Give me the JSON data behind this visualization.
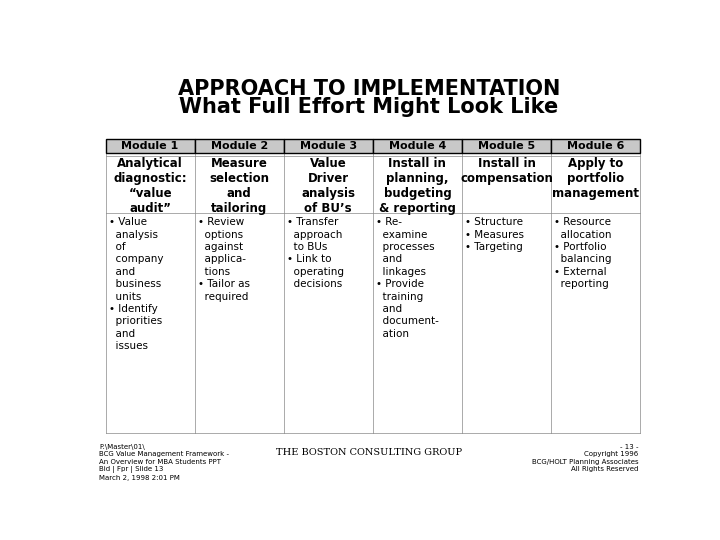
{
  "title_line1": "APPROACH TO IMPLEMENTATION",
  "title_line2": "What Full Effort Might Look Like",
  "bg_color": "#ffffff",
  "modules": [
    {
      "label": "Module 1",
      "subtitle": "Analytical\ndiagnostic:\n“value\naudit”",
      "bullets": "• Value\n  analysis\n  of\n  company\n  and\n  business\n  units\n• Identify\n  priorities\n  and\n  issues"
    },
    {
      "label": "Module 2",
      "subtitle": "Measure\nselection\nand\ntailoring",
      "bullets": "• Review\n  options\n  against\n  applica-\n  tions\n• Tailor as\n  required"
    },
    {
      "label": "Module 3",
      "subtitle": "Value\nDriver\nanalysis\nof BU’s",
      "bullets": "• Transfer\n  approach\n  to BUs\n• Link to\n  operating\n  decisions"
    },
    {
      "label": "Module 4",
      "subtitle": "Install in\nplanning,\nbudgeting\n& reporting",
      "bullets": "• Re-\n  examine\n  processes\n  and\n  linkages\n• Provide\n  training\n  and\n  document-\n  ation"
    },
    {
      "label": "Module 5",
      "subtitle": "Install in\ncompensation",
      "bullets": "• Structure\n• Measures\n• Targeting"
    },
    {
      "label": "Module 6",
      "subtitle": "Apply to\nportfolio\nmanagement",
      "bullets": "• Resource\n  allocation\n• Portfolio\n  balancing\n• External\n  reporting"
    }
  ],
  "footer_left": "F:\\Master\\01\\\nBCG Value Management Framework -\nAn Overview for MBA Students PPT\nBid | Fpr | Slide 13\nMarch 2, 1998 2:01 PM",
  "footer_center": "THE BOSTON CONSULTING GROUP",
  "footer_right": "- 13 -\nCopyright 1996\nBCG/HOLT Planning Associates\nAll Rights Reserved",
  "header_box_color": "#c8c8c8",
  "header_box_border": "#000000",
  "body_border": "#000000",
  "title_fontsize": 15,
  "subtitle_fontsize": 8.5,
  "module_label_fontsize": 8,
  "bullet_fontsize": 7.5,
  "footer_fontsize": 5
}
